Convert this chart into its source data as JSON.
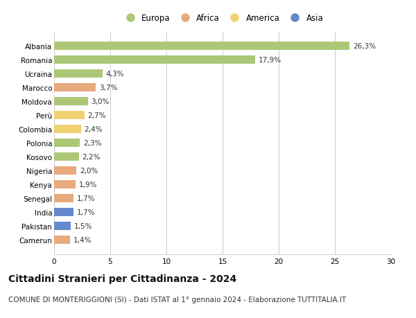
{
  "categories": [
    "Albania",
    "Romania",
    "Ucraina",
    "Marocco",
    "Moldova",
    "Perù",
    "Colombia",
    "Polonia",
    "Kosovo",
    "Nigeria",
    "Kenya",
    "Senegal",
    "India",
    "Pakistan",
    "Camerun"
  ],
  "values": [
    26.3,
    17.9,
    4.3,
    3.7,
    3.0,
    2.7,
    2.4,
    2.3,
    2.2,
    2.0,
    1.9,
    1.7,
    1.7,
    1.5,
    1.4
  ],
  "labels": [
    "26,3%",
    "17,9%",
    "4,3%",
    "3,7%",
    "3,0%",
    "2,7%",
    "2,4%",
    "2,3%",
    "2,2%",
    "2,0%",
    "1,9%",
    "1,7%",
    "1,7%",
    "1,5%",
    "1,4%"
  ],
  "continents": [
    "Europa",
    "Europa",
    "Europa",
    "Africa",
    "Europa",
    "America",
    "America",
    "Europa",
    "Europa",
    "Africa",
    "Africa",
    "Africa",
    "Asia",
    "Asia",
    "Africa"
  ],
  "colors": {
    "Europa": "#adc778",
    "Africa": "#e8a97e",
    "America": "#f0d070",
    "Asia": "#6688cc"
  },
  "legend_order": [
    "Europa",
    "Africa",
    "America",
    "Asia"
  ],
  "xlim": [
    0,
    30
  ],
  "xticks": [
    0,
    5,
    10,
    15,
    20,
    25,
    30
  ],
  "title": "Cittadini Stranieri per Cittadinanza - 2024",
  "subtitle": "COMUNE DI MONTERIGGIONI (SI) - Dati ISTAT al 1° gennaio 2024 - Elaborazione TUTTITALIA.IT",
  "background_color": "#ffffff",
  "grid_color": "#cccccc",
  "bar_height": 0.6,
  "title_fontsize": 10,
  "subtitle_fontsize": 7.5,
  "label_fontsize": 7.5,
  "tick_fontsize": 7.5,
  "legend_fontsize": 8.5
}
